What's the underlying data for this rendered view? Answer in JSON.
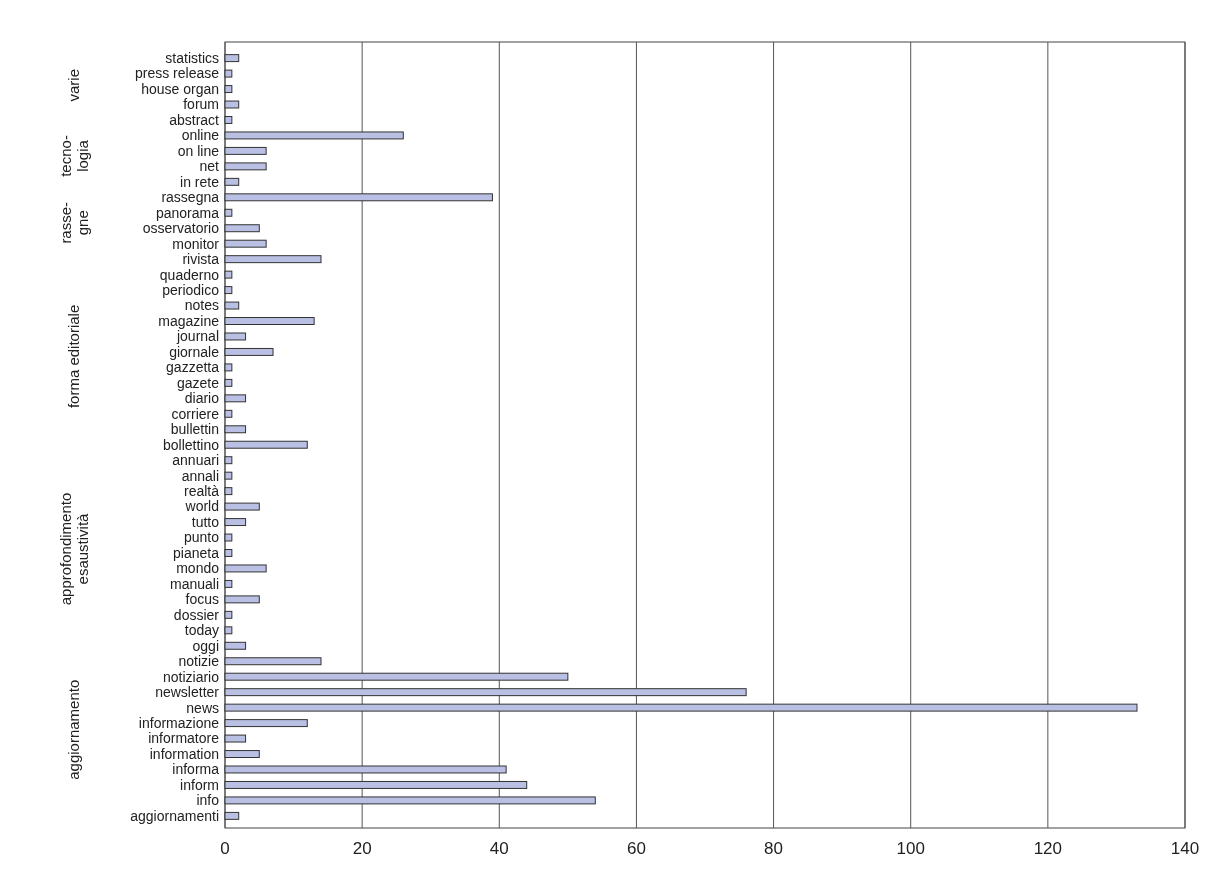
{
  "chart_data": {
    "type": "bar",
    "orientation": "horizontal",
    "categories": [
      "statistics",
      "press release",
      "house organ",
      "forum",
      "abstract",
      "online",
      "on line",
      "net",
      "in rete",
      "rassegna",
      "panorama",
      "osservatorio",
      "monitor",
      "rivista",
      "quaderno",
      "periodico",
      "notes",
      "magazine",
      "journal",
      "giornale",
      "gazzetta",
      "gazete",
      "diario",
      "corriere",
      "bullettin",
      "bollettino",
      "annuari",
      "annali",
      "realtà",
      "world",
      "tutto",
      "punto",
      "pianeta",
      "mondo",
      "manuali",
      "focus",
      "dossier",
      "today",
      "oggi",
      "notizie",
      "notiziario",
      "newsletter",
      "news",
      "informazione",
      "informatore",
      "information",
      "informa",
      "inform",
      "info",
      "aggiornamenti"
    ],
    "values": [
      2,
      1,
      1,
      2,
      1,
      26,
      6,
      6,
      2,
      39,
      1,
      5,
      6,
      14,
      1,
      1,
      2,
      13,
      3,
      7,
      1,
      1,
      3,
      1,
      3,
      12,
      1,
      1,
      1,
      5,
      3,
      1,
      1,
      6,
      1,
      5,
      1,
      1,
      3,
      14,
      50,
      76,
      133,
      12,
      3,
      5,
      41,
      44,
      54,
      2
    ],
    "color": "#b9c0e3",
    "xlim": [
      0,
      140
    ],
    "xticks": [
      0,
      20,
      40,
      60,
      80,
      100,
      120,
      140
    ],
    "grid": "x",
    "annotations": [
      "varie",
      "tecno-\nlogia",
      "rasse-\ngne",
      "forma editoriale",
      "approfondimento\nesaustività",
      "aggiornamento"
    ]
  }
}
